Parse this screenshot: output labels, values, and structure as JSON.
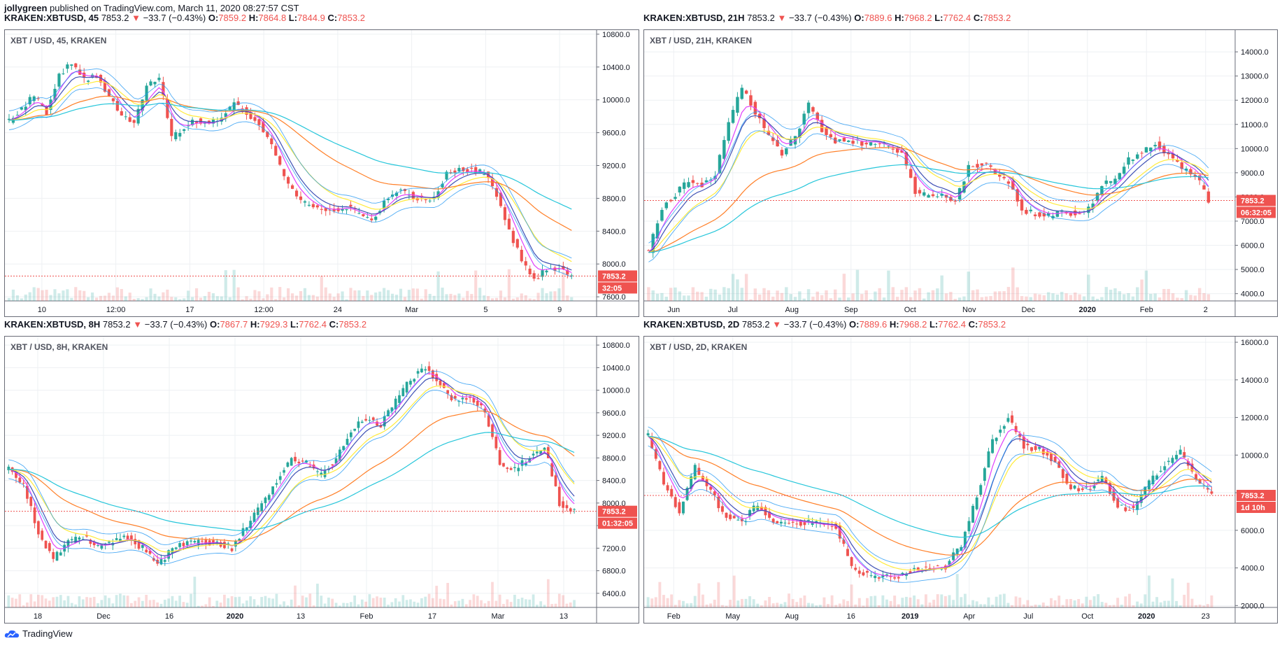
{
  "header": {
    "author": "jollygreen",
    "published": "published on TradingView.com, March 11, 2020 08:27:57 CST"
  },
  "footer": {
    "brand": "TradingView",
    "brand_icon": "tradingview-cloud-icon"
  },
  "colors": {
    "up": "#26a69a",
    "down": "#ef5350",
    "ema1": "#e040fb",
    "ema2": "#3f51b5",
    "ema3": "#ffeb3b",
    "ema4": "#ff7f27",
    "ema5": "#26c6da",
    "band": "#2196f3",
    "last_price_line": "#ef5350"
  },
  "panels": [
    {
      "id": "p45",
      "symbol": "KRAKEN:XBTUSD, 45",
      "price": "7853.2",
      "change": "−33.7 (−0.43%)",
      "o": "7859.2",
      "h": "7864.8",
      "l": "7844.9",
      "c": "7853.2",
      "watermark": "XBT / USD, 45, KRAKEN",
      "last_label": "7853.2",
      "timer": "32:05",
      "chart_data": {
        "type": "line",
        "x_ticks": [
          "10",
          "12:00",
          "17",
          "12:00",
          "24",
          "Mar",
          "5",
          "9"
        ],
        "y_ticks": [
          "10800.0",
          "10400.0",
          "10000.0",
          "9600.0",
          "9200.0",
          "8800.0",
          "8400.0",
          "8000.0",
          "7600.0"
        ],
        "ylim": [
          7550,
          10850
        ],
        "last": 7853.2,
        "close": [
          9750,
          9900,
          10050,
          9850,
          10300,
          10450,
          10250,
          10300,
          10050,
          9800,
          9700,
          10150,
          10250,
          9550,
          9650,
          9750,
          9700,
          9800,
          9950,
          9850,
          9700,
          9450,
          9050,
          8800,
          8700,
          8650,
          8650,
          8700,
          8600,
          8550,
          8750,
          8900,
          8850,
          8800,
          8800,
          9100,
          9150,
          9150,
          9100,
          8850,
          8400,
          8050,
          7800,
          7950,
          7950,
          7850
        ],
        "ema_slow": [
          9400,
          9550,
          9700,
          9800,
          9900,
          10000,
          10050,
          10050,
          10050,
          9980,
          9950,
          9950,
          9950,
          9900,
          9860,
          9830,
          9800,
          9780,
          9760,
          9720,
          9660,
          9580,
          9460,
          9320,
          9180,
          9050,
          8960,
          8880,
          8820,
          8780,
          8800,
          8800,
          8780,
          8760,
          8750,
          8800,
          8840,
          8880,
          8900,
          8880,
          8780,
          8650,
          8530,
          8430,
          8350,
          8300
        ]
      }
    },
    {
      "id": "p21h",
      "symbol": "KRAKEN:XBTUSD, 21H",
      "price": "7853.2",
      "change": "−33.7 (−0.43%)",
      "o": "7889.6",
      "h": "7968.2",
      "l": "7762.4",
      "c": "7853.2",
      "watermark": "XBT / USD, 21H, KRAKEN",
      "last_label": "7853.2",
      "timer": "06:32:05",
      "chart_data": {
        "type": "line",
        "x_ticks": [
          "Jun",
          "Jul",
          "Aug",
          "Sep",
          "Oct",
          "Nov",
          "Dec",
          "2020",
          "Feb",
          "2"
        ],
        "y_ticks": [
          "14000.0",
          "13000.0",
          "12000.0",
          "11000.0",
          "10000.0",
          "9000.0",
          "8000.0",
          "7000.0",
          "6000.0",
          "5000.0",
          "4000.0"
        ],
        "ylim": [
          3700,
          14900
        ],
        "last": 7853.2,
        "close": [
          5700,
          7600,
          8100,
          8700,
          8500,
          9000,
          11000,
          12500,
          11500,
          10500,
          9800,
          10500,
          11800,
          10800,
          10300,
          10400,
          10200,
          10300,
          10000,
          9800,
          8200,
          8000,
          8200,
          7800,
          9200,
          9400,
          9000,
          8600,
          7500,
          7300,
          7200,
          7400,
          7300,
          7500,
          8500,
          8700,
          9500,
          9900,
          10200,
          9800,
          9200,
          8900,
          7900
        ]
      }
    },
    {
      "id": "p8h",
      "symbol": "KRAKEN:XBTUSD, 8H",
      "price": "7853.2",
      "change": "−33.7 (−0.43%)",
      "o": "7867.7",
      "h": "7929.3",
      "l": "7762.4",
      "c": "7853.2",
      "watermark": "XBT / USD, 8H, KRAKEN",
      "last_label": "7853.2",
      "timer": "01:32:05",
      "chart_data": {
        "type": "line",
        "x_ticks": [
          "18",
          "Dec",
          "16",
          "2020",
          "13",
          "Feb",
          "17",
          "Mar",
          "13"
        ],
        "y_ticks": [
          "10800.0",
          "10400.0",
          "10000.0",
          "9600.0",
          "9200.0",
          "8800.0",
          "8400.0",
          "8000.0",
          "7600.0",
          "7200.0",
          "6800.0",
          "6400.0"
        ],
        "ylim": [
          6150,
          10950
        ],
        "last": 7853.2,
        "close": [
          8600,
          8300,
          7500,
          7000,
          7300,
          7400,
          7200,
          7300,
          7400,
          7200,
          6900,
          7200,
          7300,
          7300,
          7300,
          7200,
          7600,
          8000,
          8400,
          8800,
          8700,
          8500,
          8800,
          9300,
          9500,
          9400,
          9800,
          10200,
          10400,
          10100,
          9800,
          9900,
          9600,
          8700,
          8600,
          8800,
          9000,
          8000,
          7850
        ]
      }
    },
    {
      "id": "p2d",
      "symbol": "KRAKEN:XBTUSD, 2D",
      "price": "7853.2",
      "change": "−33.7 (−0.43%)",
      "o": "7889.6",
      "h": "7968.2",
      "l": "7762.4",
      "c": "7853.2",
      "watermark": "XBT / USD, 2D, KRAKEN",
      "last_label": "7853.2",
      "timer": "1d 10h",
      "chart_data": {
        "type": "line",
        "x_ticks": [
          "Feb",
          "May",
          "Aug",
          "16",
          "2019",
          "Apr",
          "Jul",
          "Oct",
          "2020",
          "23"
        ],
        "y_ticks": [
          "16000.0",
          "14000.0",
          "12000.0",
          "10000.0",
          "8000.0",
          "6000.0",
          "4000.0",
          "2000.0"
        ],
        "ylim": [
          1900,
          16300
        ],
        "last": 7853.2,
        "close": [
          11000,
          8500,
          7000,
          9300,
          8000,
          6700,
          6400,
          7400,
          6500,
          6500,
          6400,
          6300,
          6200,
          4000,
          3600,
          3500,
          3600,
          3900,
          4000,
          4100,
          5200,
          7800,
          10800,
          12000,
          10500,
          10300,
          9700,
          8200,
          8200,
          8800,
          7200,
          7200,
          8500,
          9500,
          10200,
          8600,
          7900
        ]
      }
    }
  ]
}
